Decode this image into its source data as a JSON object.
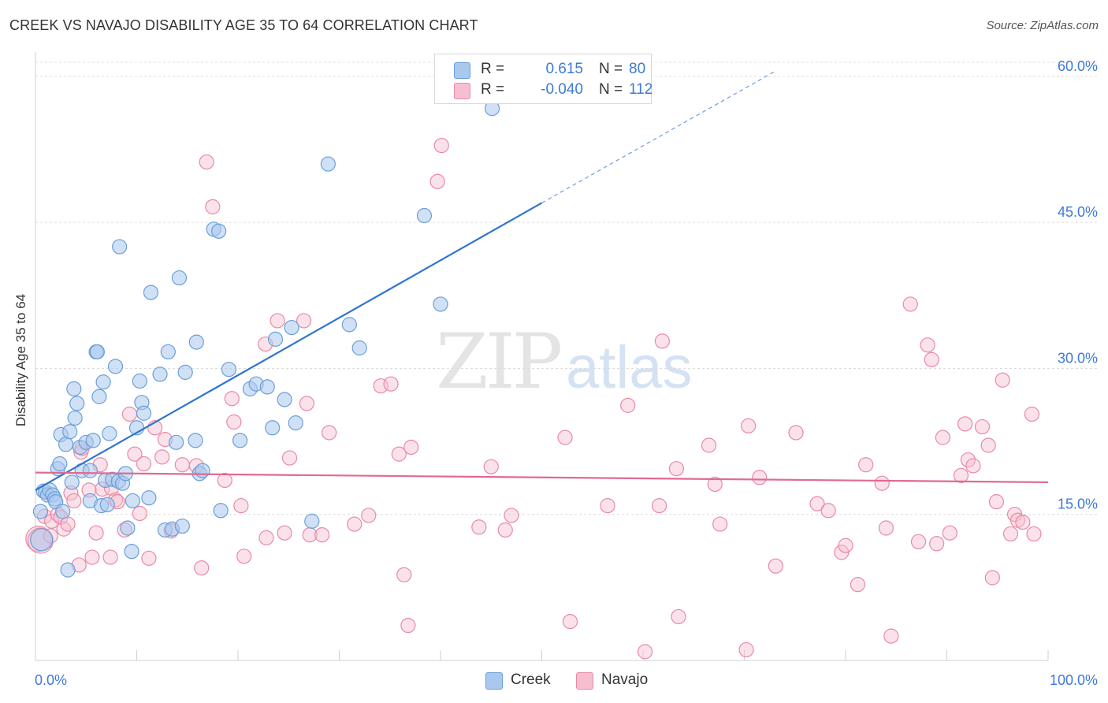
{
  "header": {
    "title": "CREEK VS NAVAJO DISABILITY AGE 35 TO 64 CORRELATION CHART",
    "source": "Source: ZipAtlas.com"
  },
  "watermark": {
    "part1": "ZIP",
    "part2": "atlas"
  },
  "legend_top": {
    "creek": {
      "r_label": "R =",
      "r_value": "0.615",
      "n_label": "N =",
      "n_value": "80"
    },
    "navajo": {
      "r_label": "R =",
      "r_value": "-0.040",
      "n_label": "N =",
      "n_value": "112"
    }
  },
  "legend_bottom": {
    "creek": "Creek",
    "navajo": "Navajo"
  },
  "colors": {
    "creek_fill": "#aac8ee",
    "creek_stroke": "#6a9fd8",
    "creek_line": "#2f74d0",
    "navajo_fill": "#f6bfd0",
    "navajo_stroke": "#e78aa6",
    "navajo_line": "#e06a90",
    "tick_label": "#3d7ad6"
  },
  "chart_data": {
    "type": "scatter",
    "title": "CREEK VS NAVAJO DISABILITY AGE 35 TO 64 CORRELATION CHART",
    "xlabel": "",
    "ylabel": "Disability Age 35 to 64",
    "xlim": [
      0,
      100
    ],
    "ylim": [
      0,
      62.5
    ],
    "x_tick_labels": [
      "0.0%",
      "100.0%"
    ],
    "y_ticks": [
      15,
      30,
      45,
      60
    ],
    "y_tick_labels": [
      "15.0%",
      "30.0%",
      "45.0%",
      "60.0%"
    ],
    "grid": true,
    "legend_position": "bottom",
    "series": [
      {
        "name": "Creek",
        "r": 0.615,
        "n": 80,
        "trend": {
          "x0": 0,
          "y0": 17.5,
          "x1": 50,
          "y1": 47.0,
          "dashed_to_x": 73,
          "dashed_to_y": 60.5
        },
        "points": [
          [
            0.5,
            15.3
          ],
          [
            0.6,
            12.4
          ],
          [
            0.8,
            17.4
          ],
          [
            1.0,
            17.3
          ],
          [
            1.2,
            17.0
          ],
          [
            1.4,
            17.5
          ],
          [
            1.7,
            17.0
          ],
          [
            1.9,
            16.6
          ],
          [
            2.0,
            16.3
          ],
          [
            2.2,
            19.7
          ],
          [
            2.4,
            20.2
          ],
          [
            2.5,
            23.2
          ],
          [
            2.7,
            15.3
          ],
          [
            3.0,
            22.2
          ],
          [
            3.2,
            9.3
          ],
          [
            3.4,
            23.5
          ],
          [
            3.6,
            18.3
          ],
          [
            3.8,
            27.9
          ],
          [
            3.9,
            24.9
          ],
          [
            4.1,
            26.4
          ],
          [
            4.4,
            21.9
          ],
          [
            4.6,
            19.5
          ],
          [
            5.0,
            22.4
          ],
          [
            5.4,
            19.5
          ],
          [
            5.4,
            16.4
          ],
          [
            5.7,
            22.6
          ],
          [
            6.0,
            31.7
          ],
          [
            6.1,
            31.7
          ],
          [
            6.3,
            27.1
          ],
          [
            6.5,
            15.9
          ],
          [
            6.7,
            28.6
          ],
          [
            6.9,
            18.5
          ],
          [
            7.1,
            16.0
          ],
          [
            7.3,
            23.3
          ],
          [
            7.6,
            18.6
          ],
          [
            7.9,
            30.2
          ],
          [
            8.2,
            18.4
          ],
          [
            8.3,
            42.5
          ],
          [
            8.6,
            18.2
          ],
          [
            8.9,
            19.2
          ],
          [
            9.1,
            13.6
          ],
          [
            9.5,
            11.2
          ],
          [
            9.6,
            16.4
          ],
          [
            10.0,
            23.9
          ],
          [
            10.3,
            28.7
          ],
          [
            10.5,
            26.5
          ],
          [
            10.7,
            25.4
          ],
          [
            11.2,
            16.7
          ],
          [
            11.4,
            37.8
          ],
          [
            12.3,
            29.4
          ],
          [
            12.8,
            13.4
          ],
          [
            13.1,
            31.7
          ],
          [
            13.5,
            13.5
          ],
          [
            13.9,
            22.4
          ],
          [
            14.2,
            39.3
          ],
          [
            14.5,
            13.8
          ],
          [
            14.8,
            29.6
          ],
          [
            15.8,
            22.6
          ],
          [
            15.9,
            32.7
          ],
          [
            16.2,
            19.2
          ],
          [
            16.5,
            19.5
          ],
          [
            17.6,
            44.3
          ],
          [
            18.1,
            44.1
          ],
          [
            18.3,
            15.4
          ],
          [
            19.1,
            29.9
          ],
          [
            20.2,
            22.6
          ],
          [
            21.2,
            27.9
          ],
          [
            21.8,
            28.4
          ],
          [
            22.9,
            28.1
          ],
          [
            23.4,
            23.9
          ],
          [
            23.7,
            33.0
          ],
          [
            24.6,
            26.8
          ],
          [
            25.3,
            34.2
          ],
          [
            25.7,
            24.4
          ],
          [
            27.3,
            14.3
          ],
          [
            28.9,
            51.0
          ],
          [
            31.0,
            34.5
          ],
          [
            32.0,
            32.1
          ],
          [
            38.4,
            45.7
          ],
          [
            40.0,
            36.6
          ],
          [
            45.1,
            56.7
          ]
        ]
      },
      {
        "name": "Navajo",
        "r": -0.04,
        "n": 112,
        "trend": {
          "x0": 0,
          "y0": 19.3,
          "x1": 100,
          "y1": 18.3
        },
        "points": [
          [
            0.3,
            12.5
          ],
          [
            0.5,
            12.3
          ],
          [
            0.9,
            14.8
          ],
          [
            1.5,
            12.8
          ],
          [
            1.6,
            14.3
          ],
          [
            2.2,
            15.0
          ],
          [
            2.5,
            14.7
          ],
          [
            2.8,
            13.5
          ],
          [
            3.2,
            14.0
          ],
          [
            3.5,
            17.2
          ],
          [
            3.8,
            16.4
          ],
          [
            4.3,
            9.8
          ],
          [
            4.5,
            21.4
          ],
          [
            4.6,
            21.8
          ],
          [
            5.3,
            17.5
          ],
          [
            5.6,
            10.6
          ],
          [
            6.0,
            13.1
          ],
          [
            6.4,
            20.1
          ],
          [
            6.6,
            17.6
          ],
          [
            7.4,
            10.6
          ],
          [
            7.5,
            17.7
          ],
          [
            7.9,
            16.5
          ],
          [
            8.1,
            16.3
          ],
          [
            8.8,
            13.4
          ],
          [
            9.3,
            25.3
          ],
          [
            9.8,
            21.2
          ],
          [
            10.3,
            15.1
          ],
          [
            10.7,
            20.2
          ],
          [
            11.2,
            10.5
          ],
          [
            11.8,
            23.9
          ],
          [
            12.5,
            20.9
          ],
          [
            12.8,
            22.7
          ],
          [
            13.4,
            13.3
          ],
          [
            14.5,
            20.1
          ],
          [
            15.9,
            20.0
          ],
          [
            16.4,
            9.5
          ],
          [
            16.9,
            51.2
          ],
          [
            17.5,
            46.6
          ],
          [
            18.7,
            18.5
          ],
          [
            19.4,
            26.9
          ],
          [
            19.6,
            24.5
          ],
          [
            20.3,
            15.9
          ],
          [
            20.6,
            10.7
          ],
          [
            22.7,
            32.5
          ],
          [
            22.8,
            12.6
          ],
          [
            23.9,
            34.9
          ],
          [
            24.6,
            13.1
          ],
          [
            25.1,
            20.8
          ],
          [
            26.5,
            34.9
          ],
          [
            26.8,
            26.4
          ],
          [
            27.1,
            12.9
          ],
          [
            28.3,
            12.9
          ],
          [
            29.0,
            23.4
          ],
          [
            31.5,
            14.0
          ],
          [
            32.9,
            14.9
          ],
          [
            34.1,
            28.2
          ],
          [
            35.1,
            28.4
          ],
          [
            35.9,
            21.2
          ],
          [
            36.4,
            8.8
          ],
          [
            36.8,
            3.6
          ],
          [
            37.1,
            21.9
          ],
          [
            39.7,
            49.2
          ],
          [
            40.1,
            52.9
          ],
          [
            43.8,
            13.7
          ],
          [
            45.0,
            19.9
          ],
          [
            46.4,
            13.4
          ],
          [
            47.0,
            14.9
          ],
          [
            52.3,
            22.9
          ],
          [
            52.8,
            4.0
          ],
          [
            56.5,
            15.9
          ],
          [
            58.5,
            26.2
          ],
          [
            60.2,
            0.9
          ],
          [
            61.6,
            15.9
          ],
          [
            61.9,
            32.8
          ],
          [
            63.3,
            19.7
          ],
          [
            63.5,
            4.5
          ],
          [
            66.5,
            22.1
          ],
          [
            67.1,
            18.1
          ],
          [
            67.6,
            14.0
          ],
          [
            70.2,
            1.1
          ],
          [
            70.4,
            24.1
          ],
          [
            71.5,
            18.8
          ],
          [
            73.1,
            9.7
          ],
          [
            75.1,
            23.4
          ],
          [
            77.2,
            16.1
          ],
          [
            78.3,
            15.4
          ],
          [
            79.6,
            11.1
          ],
          [
            80.0,
            11.8
          ],
          [
            81.2,
            7.8
          ],
          [
            82.0,
            20.1
          ],
          [
            83.6,
            18.2
          ],
          [
            84.0,
            13.6
          ],
          [
            84.5,
            2.5
          ],
          [
            86.4,
            36.6
          ],
          [
            87.2,
            12.2
          ],
          [
            88.1,
            32.4
          ],
          [
            88.5,
            30.9
          ],
          [
            89.0,
            12.0
          ],
          [
            89.6,
            22.9
          ],
          [
            90.3,
            13.1
          ],
          [
            91.4,
            19.0
          ],
          [
            91.8,
            24.3
          ],
          [
            92.1,
            20.6
          ],
          [
            92.6,
            20.0
          ],
          [
            93.5,
            24.0
          ],
          [
            94.1,
            22.1
          ],
          [
            94.5,
            8.5
          ],
          [
            94.9,
            16.3
          ],
          [
            95.5,
            28.8
          ],
          [
            96.3,
            13.0
          ],
          [
            96.7,
            15.0
          ],
          [
            97.0,
            14.4
          ],
          [
            97.5,
            14.2
          ],
          [
            98.4,
            25.3
          ],
          [
            98.6,
            13.0
          ]
        ]
      }
    ]
  }
}
